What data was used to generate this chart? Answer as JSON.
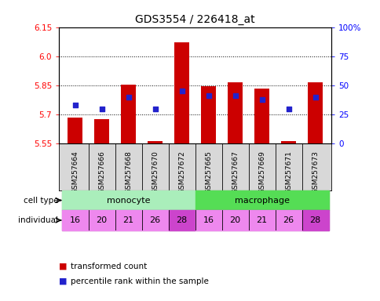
{
  "title": "GDS3554 / 226418_at",
  "samples": [
    "GSM257664",
    "GSM257666",
    "GSM257668",
    "GSM257670",
    "GSM257672",
    "GSM257665",
    "GSM257667",
    "GSM257669",
    "GSM257671",
    "GSM257673"
  ],
  "transformed_count": [
    5.685,
    5.675,
    5.855,
    5.565,
    6.07,
    5.845,
    5.865,
    5.835,
    5.565,
    5.865
  ],
  "percentile_rank": [
    33,
    30,
    40,
    30,
    45,
    41,
    41,
    38,
    30,
    40
  ],
  "cell_types": [
    "monocyte",
    "monocyte",
    "monocyte",
    "monocyte",
    "monocyte",
    "macrophage",
    "macrophage",
    "macrophage",
    "macrophage",
    "macrophage"
  ],
  "individuals": [
    "16",
    "20",
    "21",
    "26",
    "28",
    "16",
    "20",
    "21",
    "26",
    "28"
  ],
  "ylim_left": [
    5.55,
    6.15
  ],
  "ylim_right": [
    0,
    100
  ],
  "yticks_left": [
    5.55,
    5.7,
    5.85,
    6.0,
    6.15
  ],
  "yticks_right": [
    0,
    25,
    50,
    75,
    100
  ],
  "ytick_labels_right": [
    "0",
    "25",
    "50",
    "75",
    "100%"
  ],
  "bar_color": "#cc0000",
  "dot_color": "#2222cc",
  "bar_bottom": 5.55,
  "monocyte_color": "#aaeebb",
  "macrophage_color": "#55dd55",
  "individual_color": "#ee88ee",
  "individual_highlight_color": "#cc44cc",
  "sample_bg": "#d8d8d8",
  "plot_bg": "#ffffff",
  "legend_red": "transformed count",
  "legend_blue": "percentile rank within the sample",
  "grid_dotted_values": [
    5.7,
    5.85,
    6.0
  ]
}
